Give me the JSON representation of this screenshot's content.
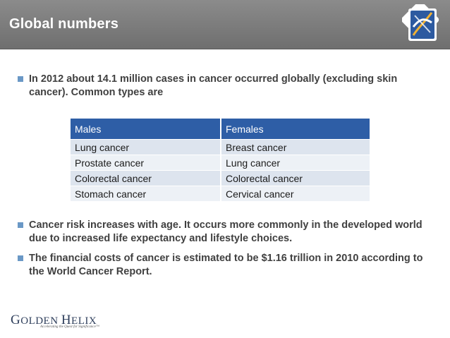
{
  "header": {
    "title": "Global numbers",
    "logo_icon": "helix-icon"
  },
  "bullets": [
    {
      "text": "In 2012 about 14.1 million cases in cancer occurred globally (excluding skin cancer). Common types are"
    },
    {
      "text": "Cancer risk increases with age. It occurs more commonly in the developed world due to increased life expectancy and lifestyle choices."
    },
    {
      "text": "The financial costs of cancer is estimated to be $1.16 trillion in 2010 according to the World Cancer Report."
    }
  ],
  "table": {
    "headers": [
      "Males",
      "Females"
    ],
    "rows": [
      [
        "Lung cancer",
        "Breast cancer"
      ],
      [
        "Prostate cancer",
        "Lung cancer"
      ],
      [
        "Colorectal cancer",
        "Colorectal cancer"
      ],
      [
        "Stomach cancer",
        "Cervical cancer"
      ]
    ]
  },
  "footer": {
    "logo_text_initial_1": "G",
    "logo_text_rest_1": "OLDEN",
    "logo_text_initial_2": "H",
    "logo_text_rest_2": "ELIX",
    "logo_tagline": "Accelerating the Quest for Significance™"
  },
  "colors": {
    "header_bg": "#7d7d7d",
    "table_header_bg": "#2e5ea6",
    "bullet_marker": "#6a98c6",
    "row_odd": "#dde4ee",
    "row_even": "#edf1f6"
  }
}
